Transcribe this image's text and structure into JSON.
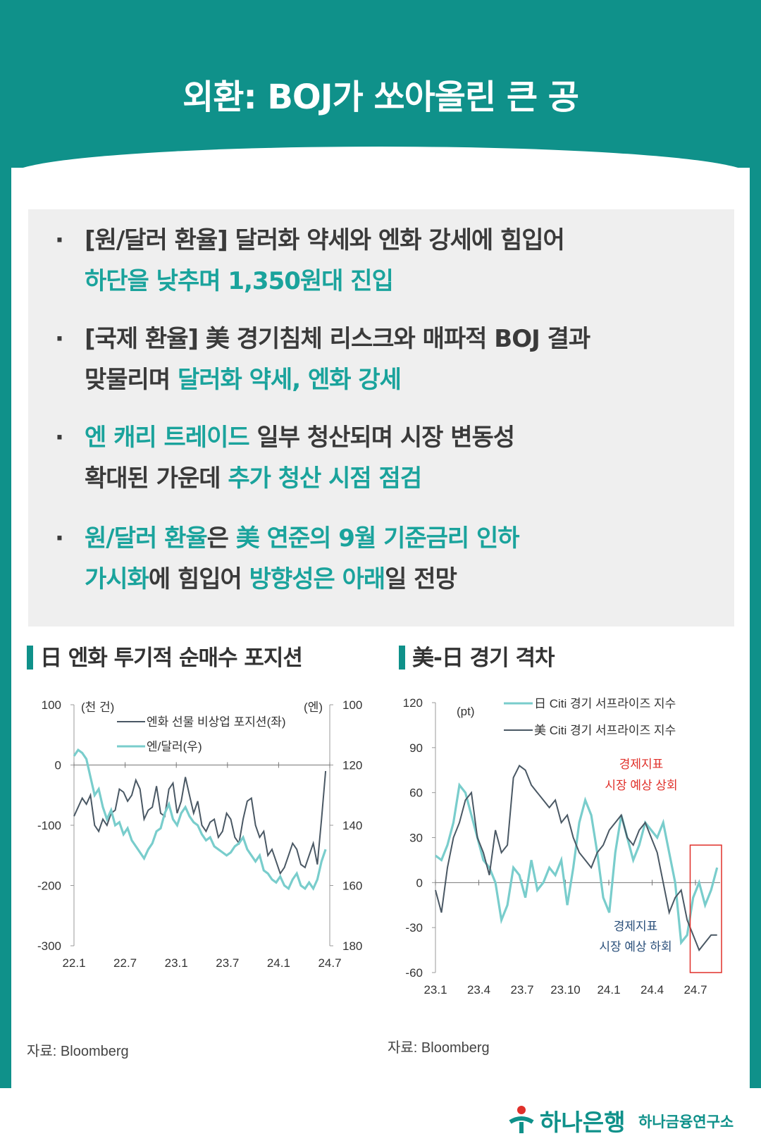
{
  "title": "외환: BOJ가 쏘아올린 큰 공",
  "summary": [
    {
      "l1": [
        {
          "t": "[원/달러 환율] 달러화 약세와 엔화 강세에 힘입어",
          "c": false
        }
      ],
      "l2": [
        {
          "t": "하단을 낮추며 1,350원대 진입",
          "c": true
        }
      ]
    },
    {
      "l1": [
        {
          "t": "[국제 환율] 美 경기침체 리스크와 매파적 BOJ 결과",
          "c": false
        }
      ],
      "l2": [
        {
          "t": "맞물리며 ",
          "c": false
        },
        {
          "t": "달러화 약세, 엔화 강세",
          "c": true
        }
      ]
    },
    {
      "l1": [
        {
          "t": "엔 캐리 트레이드",
          "c": true
        },
        {
          "t": " 일부 청산되며 시장 변동성",
          "c": false
        }
      ],
      "l2": [
        {
          "t": "확대된 가운데 ",
          "c": false
        },
        {
          "t": "추가 청산 시점 점검",
          "c": true
        }
      ]
    },
    {
      "l1": [
        {
          "t": "원/달러 환율",
          "c": true
        },
        {
          "t": "은 ",
          "c": false
        },
        {
          "t": "美 연준의 9월 기준금리 인하",
          "c": true
        }
      ],
      "l2": [
        {
          "t": "가시화",
          "c": true
        },
        {
          "t": "에 힘입어 ",
          "c": false
        },
        {
          "t": "방향성은 아래",
          "c": true
        },
        {
          "t": "일 전망",
          "c": false
        }
      ]
    }
  ],
  "chart1_title": "日 엔화 투기적 순매수 포지션",
  "chart2_title": "美-日 경기 격차",
  "source1": "자료: Bloomberg",
  "source2": "자료: Bloomberg",
  "footer": {
    "brand": "하나은행",
    "institute": "하나금융연구소"
  },
  "colors": {
    "teal": "#0f918a",
    "light_teal": "#79cdcc",
    "dark_line": "#4a5864",
    "red": "#e0302a"
  },
  "chart_data": [
    {
      "type": "line",
      "title": "日 엔화 투기적 순매수 포지션",
      "left_unit": "(천 건)",
      "right_unit": "(엔)",
      "x_ticks": [
        "22.1",
        "22.7",
        "23.1",
        "23.7",
        "24.1",
        "24.7"
      ],
      "y_left_ticks": [
        "100",
        "0",
        "-100",
        "-200",
        "-300"
      ],
      "y_right_ticks": [
        "100",
        "120",
        "140",
        "160",
        "180"
      ],
      "ylim_left": [
        -300,
        100
      ],
      "ylim_right_inverted": [
        100,
        180
      ],
      "xlim": [
        0,
        31
      ],
      "series": [
        {
          "name": "엔화 선물 비상업 포지션(좌)",
          "axis": "left",
          "color": "#4a5864",
          "x": [
            0,
            0.5,
            1,
            1.5,
            2,
            2.5,
            3,
            3.5,
            4,
            4.5,
            5,
            5.5,
            6,
            6.5,
            7,
            7.5,
            8,
            8.5,
            9,
            9.5,
            10,
            10.5,
            11,
            11.5,
            12,
            12.5,
            13,
            13.5,
            14,
            14.5,
            15,
            15.5,
            16,
            16.5,
            17,
            17.5,
            18,
            18.5,
            19,
            19.5,
            20,
            20.5,
            21,
            21.5,
            22,
            22.5,
            23,
            23.5,
            24,
            24.5,
            25,
            25.5,
            26,
            26.5,
            27,
            27.5,
            28,
            28.5,
            29,
            29.5,
            30,
            30.5
          ],
          "y": [
            -85,
            -70,
            -55,
            -65,
            -50,
            -100,
            -110,
            -90,
            -100,
            -80,
            -75,
            -40,
            -45,
            -60,
            -50,
            -25,
            -40,
            -90,
            -75,
            -70,
            -35,
            -80,
            -85,
            -40,
            -30,
            -80,
            -60,
            -20,
            -50,
            -80,
            -60,
            -100,
            -110,
            -95,
            -90,
            -120,
            -110,
            -80,
            -90,
            -120,
            -130,
            -90,
            -60,
            -55,
            -100,
            -120,
            -110,
            -150,
            -140,
            -160,
            -180,
            -170,
            -150,
            -130,
            -140,
            -165,
            -170,
            -150,
            -130,
            -165,
            -90,
            -10
          ]
        },
        {
          "name": "엔/달러(우)",
          "axis": "right",
          "color": "#79cdcc",
          "x": [
            0,
            0.5,
            1,
            1.5,
            2,
            2.5,
            3,
            3.5,
            4,
            4.5,
            5,
            5.5,
            6,
            6.5,
            7,
            7.5,
            8,
            8.5,
            9,
            9.5,
            10,
            10.5,
            11,
            11.5,
            12,
            12.5,
            13,
            13.5,
            14,
            14.5,
            15,
            15.5,
            16,
            16.5,
            17,
            17.5,
            18,
            18.5,
            19,
            19.5,
            20,
            20.5,
            21,
            21.5,
            22,
            22.5,
            23,
            23.5,
            24,
            24.5,
            25,
            25.5,
            26,
            26.5,
            27,
            27.5,
            28,
            28.5,
            29,
            29.5,
            30,
            30.5
          ],
          "y": [
            117,
            115,
            116,
            118,
            124,
            130,
            128,
            134,
            138,
            135,
            140,
            139,
            143,
            141,
            145,
            147,
            149,
            151,
            148,
            146,
            142,
            141,
            136,
            133,
            138,
            140,
            136,
            134,
            137,
            139,
            140,
            143,
            145,
            144,
            147,
            148,
            149,
            150,
            149,
            147,
            146,
            144,
            148,
            150,
            152,
            150,
            155,
            156,
            158,
            159,
            157,
            160,
            161,
            158,
            156,
            160,
            161,
            159,
            161,
            158,
            152,
            148
          ]
        }
      ]
    },
    {
      "type": "line",
      "title": "美-日 경기 격차",
      "left_unit": "(pt)",
      "x_ticks": [
        "23.1",
        "23.4",
        "23.7",
        "23.10",
        "24.1",
        "24.4",
        "24.7"
      ],
      "y_ticks": [
        "120",
        "90",
        "60",
        "30",
        "0",
        "-30",
        "-60"
      ],
      "ylim": [
        -60,
        120
      ],
      "xlim": [
        0,
        19
      ],
      "annotation_upper": [
        "경제지표",
        "시장 예상 상회"
      ],
      "annotation_lower": [
        "경제지표",
        "시장 예상 하회"
      ],
      "series": [
        {
          "name": "日 Citi 경기 서프라이즈 지수",
          "color": "#79cdcc",
          "x": [
            0,
            0.4,
            0.8,
            1.2,
            1.6,
            2,
            2.4,
            2.8,
            3.2,
            3.6,
            4,
            4.4,
            4.8,
            5.2,
            5.6,
            6,
            6.4,
            6.8,
            7.2,
            7.6,
            8,
            8.4,
            8.8,
            9.2,
            9.6,
            10,
            10.4,
            10.8,
            11.2,
            11.6,
            12,
            12.4,
            12.8,
            13.2,
            13.6,
            14,
            14.4,
            14.8,
            15.2,
            15.6,
            16,
            16.4,
            16.8,
            17.2,
            17.6,
            18,
            18.4,
            18.8
          ],
          "y": [
            18,
            15,
            25,
            40,
            65,
            60,
            45,
            30,
            15,
            10,
            0,
            -25,
            -15,
            10,
            5,
            -10,
            15,
            -5,
            0,
            10,
            5,
            15,
            -15,
            10,
            40,
            55,
            45,
            20,
            -10,
            -20,
            20,
            45,
            30,
            15,
            25,
            40,
            35,
            30,
            40,
            20,
            0,
            -40,
            -35,
            -10,
            0,
            -15,
            -5,
            10
          ]
        },
        {
          "name": "美 Citi 경기 서프라이즈 지수",
          "color": "#4a5864",
          "x": [
            0,
            0.4,
            0.8,
            1.2,
            1.6,
            2,
            2.4,
            2.8,
            3.2,
            3.6,
            4,
            4.4,
            4.8,
            5.2,
            5.6,
            6,
            6.4,
            6.8,
            7.2,
            7.6,
            8,
            8.4,
            8.8,
            9.2,
            9.6,
            10,
            10.4,
            10.8,
            11.2,
            11.6,
            12,
            12.4,
            12.8,
            13.2,
            13.6,
            14,
            14.4,
            14.8,
            15.2,
            15.6,
            16,
            16.4,
            16.8,
            17.2,
            17.6,
            18,
            18.4,
            18.8
          ],
          "y": [
            -5,
            -20,
            10,
            30,
            40,
            55,
            60,
            30,
            20,
            5,
            35,
            20,
            25,
            70,
            78,
            75,
            65,
            60,
            55,
            50,
            55,
            40,
            45,
            30,
            20,
            15,
            10,
            20,
            25,
            35,
            40,
            45,
            30,
            25,
            35,
            40,
            30,
            20,
            0,
            -20,
            -10,
            -5,
            -25,
            -35,
            -45,
            -40,
            -35,
            -35
          ]
        }
      ]
    }
  ]
}
